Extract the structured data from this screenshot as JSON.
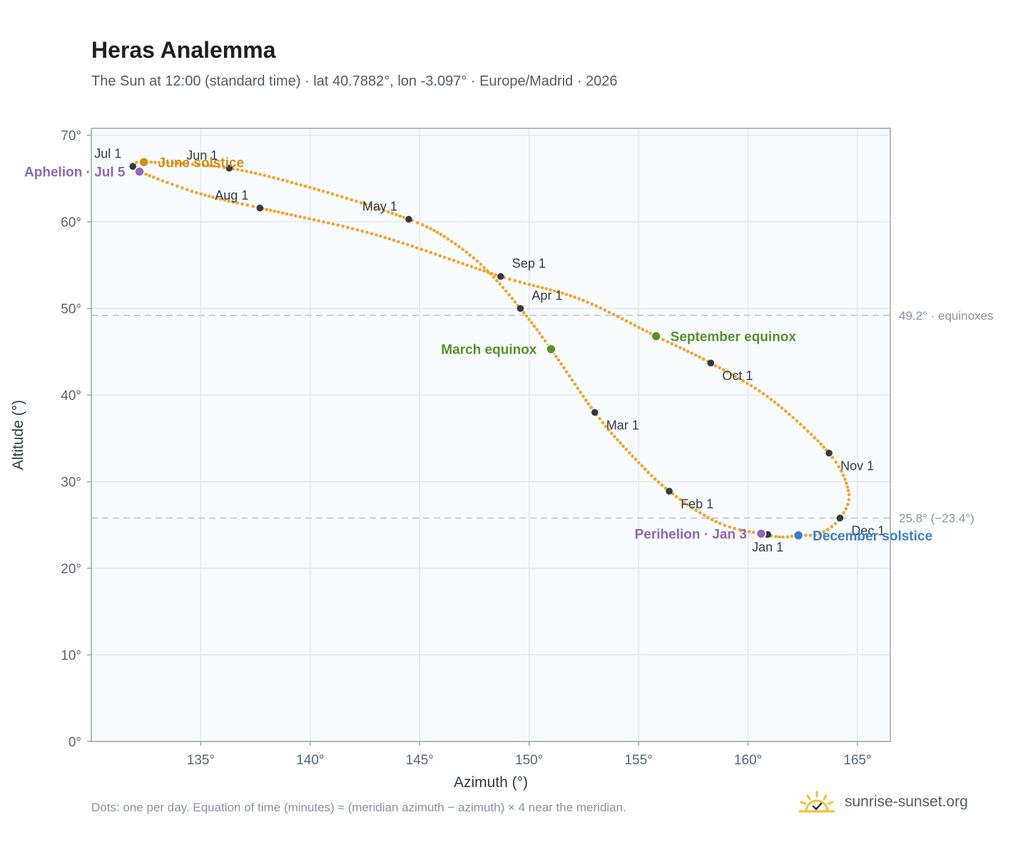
{
  "title": "Heras Analemma",
  "subtitle": "The Sun at 12:00 (standard time) · lat 40.7882°, lon -3.097° · Europe/Madrid · 2026",
  "footnote": "Dots: one per day. Equation of time (minutes) ≈ (meridian azimuth − azimuth) × 4 near the meridian.",
  "brand": {
    "name": "sunrise-sunset.org",
    "icon": "sun-check-icon"
  },
  "colors": {
    "path": "#f0a530",
    "month_marker": "#333a44",
    "equinox": "#5a8f2e",
    "june_solstice": "#cf8f15",
    "december_solstice": "#3a7fc6",
    "apsis": "#8e67b5",
    "plot_background": "#f8fbfd",
    "grid": "#e3e8ee",
    "refline": "#b7c3cf"
  },
  "chart_data": {
    "type": "scatter",
    "xlabel": "Azimuth (°)",
    "ylabel": "Altitude (°)",
    "xlim": [
      130,
      166.5
    ],
    "ylim": [
      0,
      70.8
    ],
    "x_ticks": [
      {
        "value": 135,
        "label": "135°"
      },
      {
        "value": 140,
        "label": "140°"
      },
      {
        "value": 145,
        "label": "145°"
      },
      {
        "value": 150,
        "label": "150°"
      },
      {
        "value": 155,
        "label": "155°"
      },
      {
        "value": 160,
        "label": "160°"
      },
      {
        "value": 165,
        "label": "165°"
      }
    ],
    "y_ticks": [
      {
        "value": 0,
        "label": "0°"
      },
      {
        "value": 10,
        "label": "10°"
      },
      {
        "value": 20,
        "label": "20°"
      },
      {
        "value": 30,
        "label": "30°"
      },
      {
        "value": 40,
        "label": "40°"
      },
      {
        "value": 50,
        "label": "50°"
      },
      {
        "value": 60,
        "label": "60°"
      },
      {
        "value": 70,
        "label": "70°"
      }
    ],
    "grid": true,
    "reference_lines": [
      {
        "y": 49.2,
        "label": "49.2° · equinoxes"
      },
      {
        "y": 25.8,
        "label": "25.8° (−23.4°)"
      }
    ],
    "daily_path": [
      {
        "x": 161.6,
        "y": 23.6
      },
      {
        "x": 160.8,
        "y": 23.9
      },
      {
        "x": 158.7,
        "y": 25.2
      },
      {
        "x": 156.4,
        "y": 28.9
      },
      {
        "x": 154.6,
        "y": 33.3
      },
      {
        "x": 153.0,
        "y": 38.0
      },
      {
        "x": 151.0,
        "y": 45.3
      },
      {
        "x": 149.6,
        "y": 50.0
      },
      {
        "x": 148.0,
        "y": 54.6
      },
      {
        "x": 146.3,
        "y": 58.0
      },
      {
        "x": 144.5,
        "y": 60.3
      },
      {
        "x": 140.5,
        "y": 63.6
      },
      {
        "x": 136.3,
        "y": 66.2
      },
      {
        "x": 132.4,
        "y": 66.9
      },
      {
        "x": 131.9,
        "y": 66.4
      },
      {
        "x": 132.2,
        "y": 65.8
      },
      {
        "x": 134.9,
        "y": 63.3
      },
      {
        "x": 137.7,
        "y": 61.6
      },
      {
        "x": 143.0,
        "y": 58.5
      },
      {
        "x": 148.7,
        "y": 53.7
      },
      {
        "x": 152.3,
        "y": 51.1
      },
      {
        "x": 155.8,
        "y": 46.8
      },
      {
        "x": 158.3,
        "y": 43.7
      },
      {
        "x": 161.0,
        "y": 39.6
      },
      {
        "x": 163.7,
        "y": 33.3
      },
      {
        "x": 164.6,
        "y": 28.7
      },
      {
        "x": 164.2,
        "y": 25.8
      },
      {
        "x": 163.3,
        "y": 24.0
      },
      {
        "x": 162.3,
        "y": 23.8
      },
      {
        "x": 161.6,
        "y": 23.6
      }
    ],
    "month_markers": [
      {
        "label": "Jan 1",
        "x": 160.9,
        "y": 23.9,
        "anchor": "below"
      },
      {
        "label": "Feb 1",
        "x": 156.4,
        "y": 28.9,
        "anchor": "below-right"
      },
      {
        "label": "Mar 1",
        "x": 153.0,
        "y": 38.0,
        "anchor": "below-right"
      },
      {
        "label": "Apr 1",
        "x": 149.6,
        "y": 50.0,
        "anchor": "above-right"
      },
      {
        "label": "May 1",
        "x": 144.5,
        "y": 60.3,
        "anchor": "above-left"
      },
      {
        "label": "Jun 1",
        "x": 136.3,
        "y": 66.2,
        "anchor": "above-left"
      },
      {
        "label": "Jul 1",
        "x": 131.9,
        "y": 66.4,
        "anchor": "above-left"
      },
      {
        "label": "Aug 1",
        "x": 137.7,
        "y": 61.6,
        "anchor": "above-left"
      },
      {
        "label": "Sep 1",
        "x": 148.7,
        "y": 53.7,
        "anchor": "above-right"
      },
      {
        "label": "Oct 1",
        "x": 158.3,
        "y": 43.7,
        "anchor": "below-right"
      },
      {
        "label": "Nov 1",
        "x": 163.7,
        "y": 33.3,
        "anchor": "below-right"
      },
      {
        "label": "Dec 1",
        "x": 164.2,
        "y": 25.8,
        "anchor": "below-right"
      }
    ],
    "events": [
      {
        "label": "March equinox",
        "x": 151.0,
        "y": 45.3,
        "color": "#5a8f2e",
        "side": "left"
      },
      {
        "label": "September equinox",
        "x": 155.8,
        "y": 46.8,
        "color": "#5a8f2e",
        "side": "right"
      },
      {
        "label": "June solstice",
        "x": 132.4,
        "y": 66.9,
        "color": "#cf8f15",
        "side": "right"
      },
      {
        "label": "December solstice",
        "x": 162.3,
        "y": 23.8,
        "color": "#3a7fc6",
        "side": "right"
      },
      {
        "label": "Aphelion · Jul 5",
        "x": 132.2,
        "y": 65.8,
        "color": "#8e67b5",
        "side": "left"
      },
      {
        "label": "Perihelion · Jan 3",
        "x": 160.6,
        "y": 24.0,
        "color": "#8e67b5",
        "side": "left"
      }
    ]
  }
}
